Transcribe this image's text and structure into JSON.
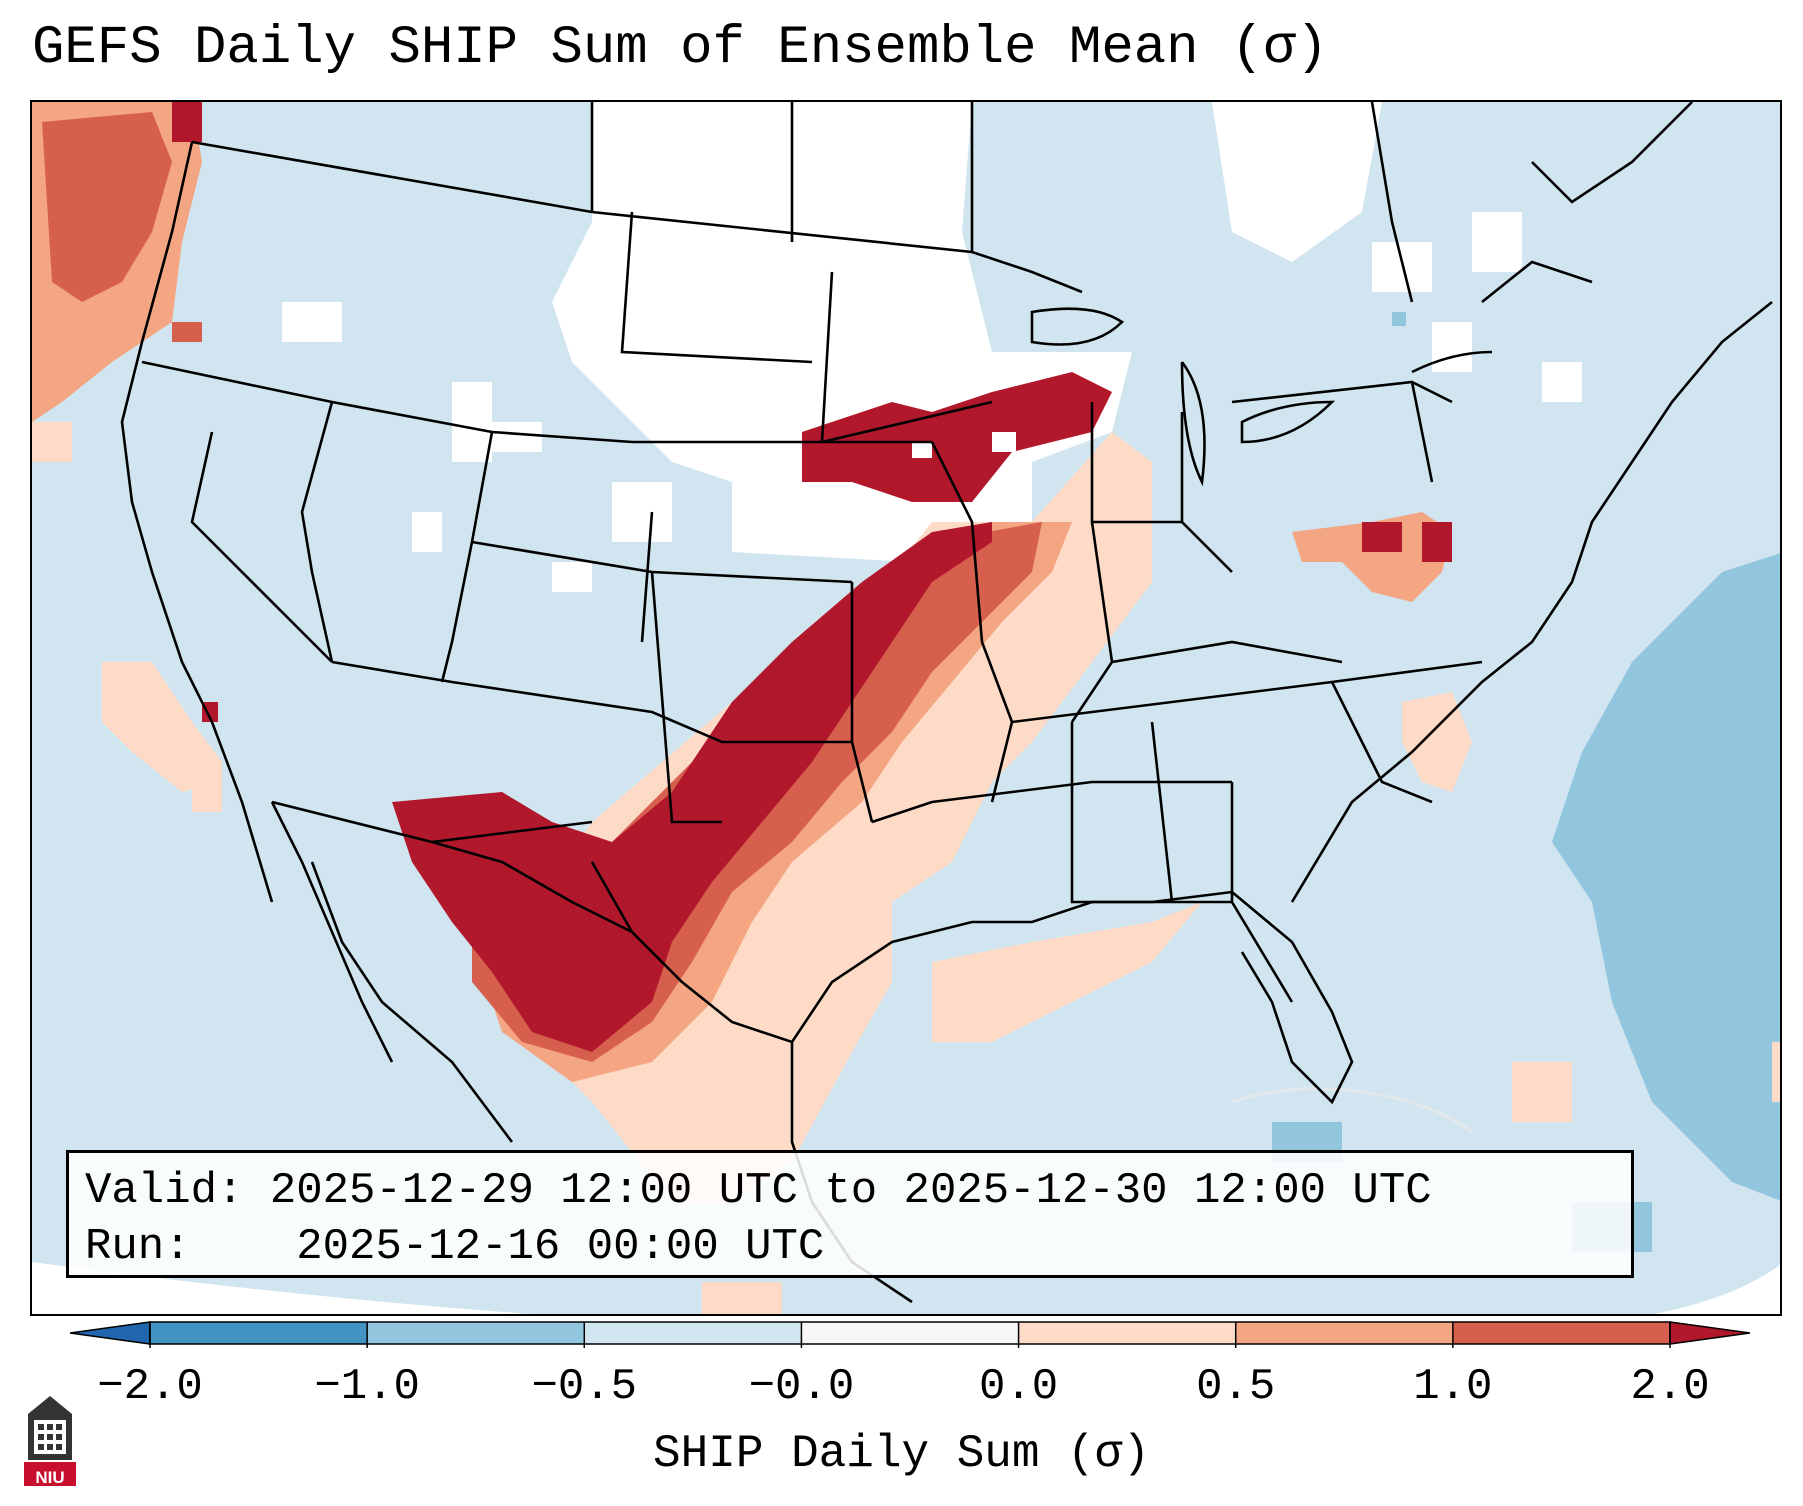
{
  "title": "GEFS Daily SHIP Sum of Ensemble Mean (σ)",
  "info": {
    "valid_label": "Valid:",
    "valid_value": "2025-12-29 12:00 UTC to 2025-12-30 12:00 UTC",
    "run_label": "Run:",
    "run_value": "2025-12-16 00:00 UTC"
  },
  "colorbar": {
    "label": "SHIP Daily Sum (σ)",
    "ticks": [
      "−2.0",
      "−1.0",
      "−0.5",
      "−0.0",
      "0.0",
      "0.5",
      "1.0",
      "2.0"
    ],
    "colors": [
      "#4393c3",
      "#92c5de",
      "#d1e5f0",
      "#f7f7f7",
      "#fddbc7",
      "#f4a582",
      "#d6604d",
      "#b2182b"
    ],
    "extend_low_color": "#2166ac",
    "extend_high_color": "#b2182b"
  },
  "map_colors": {
    "ocean_background": "#d1e5f0",
    "neutral_white": "#ffffff",
    "light_red": "#fddbc7",
    "mid_red": "#f4a582",
    "red": "#d6604d",
    "dark_red": "#b2182b",
    "light_blue": "#92c5de",
    "blue": "#4393c3"
  },
  "logo": {
    "text": "NIU",
    "color": "#c8102e"
  }
}
